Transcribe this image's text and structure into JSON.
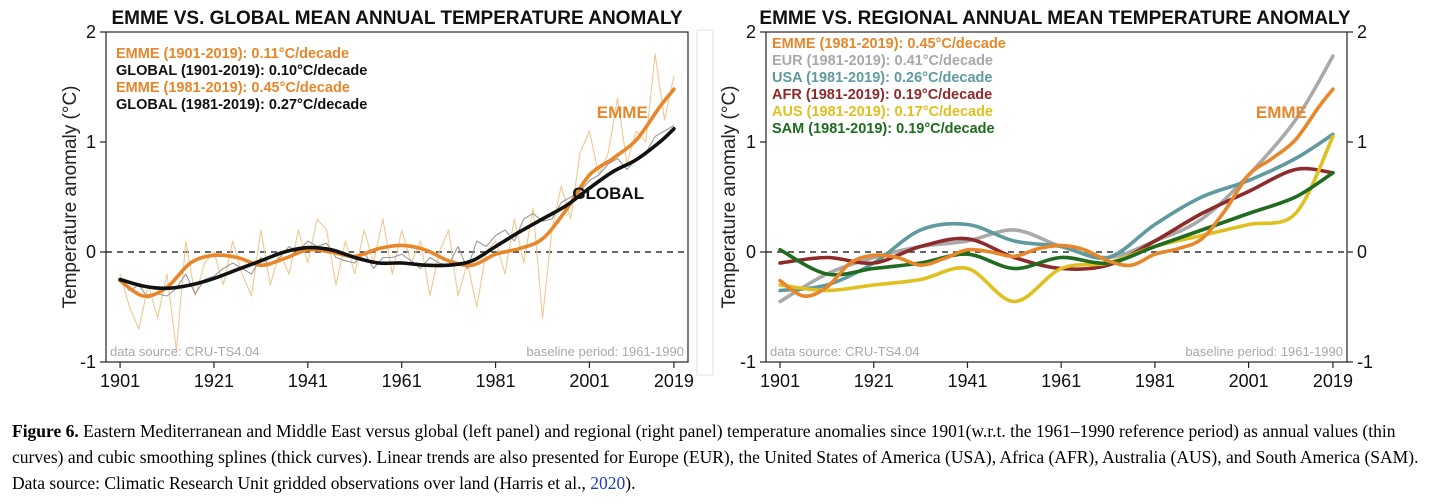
{
  "chart_data": [
    {
      "type": "line",
      "title": "EMME VS. GLOBAL MEAN ANNUAL TEMPERATURE ANOMALY",
      "ylabel": "Temperature anomaly (°C)",
      "xlabel": "",
      "xlim": [
        1898,
        2022
      ],
      "ylim": [
        -1.0,
        2.0
      ],
      "xticks": [
        "1901",
        "1921",
        "1941",
        "1961",
        "1981",
        "2001",
        "2019"
      ],
      "yticks": [
        "2",
        "1",
        "0",
        "-1"
      ],
      "right_axis": false,
      "reference_line": 0,
      "source_note": "data source: CRU-TS4.04",
      "baseline_note": "baseline period: 1961-1990",
      "annotations": [
        {
          "text": "EMME",
          "x": 2008,
          "y": 1.22,
          "color": "#e8862a"
        },
        {
          "text": "GLOBAL",
          "x": 2005,
          "y": 0.48,
          "color": "#111111"
        }
      ],
      "legend": [
        {
          "text": "EMME (1901-2019): 0.11°C/decade",
          "color": "#e8862a"
        },
        {
          "text": "GLOBAL (1901-2019): 0.10°C/decade",
          "color": "#111111"
        },
        {
          "text": "EMME (1981-2019): 0.45°C/decade",
          "color": "#e8862a"
        },
        {
          "text": "GLOBAL (1981-2019): 0.27°C/decade",
          "color": "#111111"
        }
      ],
      "series": [
        {
          "name": "EMME",
          "kind": "smooth",
          "color": "#e8862a",
          "x": [
            1901,
            1906,
            1911,
            1916,
            1921,
            1926,
            1931,
            1936,
            1941,
            1946,
            1951,
            1956,
            1961,
            1966,
            1971,
            1976,
            1981,
            1986,
            1991,
            1996,
            2001,
            2006,
            2011,
            2016,
            2019
          ],
          "y": [
            -0.26,
            -0.4,
            -0.32,
            -0.1,
            -0.03,
            -0.05,
            -0.12,
            -0.06,
            0.02,
            0.0,
            -0.04,
            0.03,
            0.06,
            0.02,
            -0.08,
            -0.12,
            -0.02,
            0.03,
            0.12,
            0.38,
            0.7,
            0.85,
            1.02,
            1.32,
            1.48
          ]
        },
        {
          "name": "GLOBAL",
          "kind": "smooth",
          "color": "#111111",
          "x": [
            1901,
            1906,
            1911,
            1916,
            1921,
            1926,
            1931,
            1936,
            1941,
            1946,
            1951,
            1956,
            1961,
            1966,
            1971,
            1976,
            1981,
            1986,
            1991,
            1996,
            2001,
            2006,
            2011,
            2016,
            2019
          ],
          "y": [
            -0.25,
            -0.31,
            -0.33,
            -0.3,
            -0.24,
            -0.16,
            -0.08,
            0.0,
            0.04,
            0.02,
            -0.05,
            -0.1,
            -0.1,
            -0.12,
            -0.12,
            -0.08,
            0.05,
            0.18,
            0.3,
            0.42,
            0.58,
            0.73,
            0.84,
            1.0,
            1.12
          ]
        },
        {
          "name": "EMME",
          "kind": "annual",
          "color": "#f0c890",
          "x": [
            1901,
            1903,
            1905,
            1907,
            1909,
            1911,
            1913,
            1915,
            1917,
            1919,
            1921,
            1923,
            1925,
            1927,
            1929,
            1931,
            1933,
            1935,
            1937,
            1939,
            1941,
            1943,
            1945,
            1947,
            1949,
            1951,
            1953,
            1955,
            1957,
            1959,
            1961,
            1963,
            1965,
            1967,
            1969,
            1971,
            1973,
            1975,
            1977,
            1979,
            1981,
            1983,
            1985,
            1987,
            1989,
            1991,
            1993,
            1995,
            1997,
            1999,
            2001,
            2003,
            2005,
            2007,
            2009,
            2011,
            2013,
            2015,
            2017,
            2019
          ],
          "y": [
            -0.2,
            -0.5,
            -0.7,
            -0.3,
            -0.6,
            -0.2,
            -0.9,
            0.1,
            -0.4,
            -0.1,
            0.0,
            -0.3,
            0.1,
            -0.2,
            -0.4,
            0.2,
            -0.3,
            0.0,
            -0.2,
            0.2,
            -0.1,
            0.3,
            0.2,
            -0.3,
            0.1,
            -0.2,
            0.2,
            -0.1,
            0.3,
            -0.2,
            0.2,
            -0.1,
            0.1,
            -0.4,
            0.0,
            0.2,
            -0.4,
            -0.1,
            -0.5,
            0.0,
            0.1,
            -0.2,
            0.3,
            -0.1,
            0.4,
            -0.6,
            0.2,
            0.6,
            0.3,
            0.9,
            1.1,
            0.7,
            0.9,
            1.4,
            0.8,
            1.1,
            1.0,
            1.8,
            1.2,
            1.6
          ]
        },
        {
          "name": "GLOBAL",
          "kind": "annual",
          "color": "#9a9a9a",
          "x": [
            1901,
            1903,
            1905,
            1907,
            1909,
            1911,
            1913,
            1915,
            1917,
            1919,
            1921,
            1923,
            1925,
            1927,
            1929,
            1931,
            1933,
            1935,
            1937,
            1939,
            1941,
            1943,
            1945,
            1947,
            1949,
            1951,
            1953,
            1955,
            1957,
            1959,
            1961,
            1963,
            1965,
            1967,
            1969,
            1971,
            1973,
            1975,
            1977,
            1979,
            1981,
            1983,
            1985,
            1987,
            1989,
            1991,
            1993,
            1995,
            1997,
            1999,
            2001,
            2003,
            2005,
            2007,
            2009,
            2011,
            2013,
            2015,
            2017,
            2019
          ],
          "y": [
            -0.25,
            -0.35,
            -0.3,
            -0.42,
            -0.38,
            -0.4,
            -0.33,
            -0.2,
            -0.38,
            -0.25,
            -0.22,
            -0.15,
            -0.1,
            -0.15,
            -0.2,
            -0.05,
            -0.12,
            -0.05,
            0.05,
            0.0,
            0.1,
            0.05,
            0.08,
            -0.05,
            -0.08,
            -0.1,
            0.0,
            -0.15,
            -0.05,
            -0.05,
            -0.02,
            -0.08,
            -0.15,
            -0.05,
            -0.1,
            -0.12,
            0.05,
            -0.15,
            0.1,
            0.05,
            0.15,
            0.2,
            0.1,
            0.3,
            0.35,
            0.28,
            0.3,
            0.45,
            0.5,
            0.55,
            0.65,
            0.7,
            0.8,
            0.85,
            0.75,
            0.85,
            0.9,
            1.05,
            1.1,
            1.15
          ]
        }
      ]
    },
    {
      "type": "line",
      "title": "EMME VS. REGIONAL ANNUAL MEAN TEMPERATURE ANOMALY",
      "ylabel": "Temperature anomaly (°C)",
      "xlabel": "",
      "xlim": [
        1898,
        2022
      ],
      "ylim": [
        -1.0,
        2.0
      ],
      "xticks": [
        "1901",
        "1921",
        "1941",
        "1961",
        "1981",
        "2001",
        "2019"
      ],
      "yticks": [
        "2",
        "1",
        "0",
        "-1"
      ],
      "right_axis": true,
      "reference_line": 0,
      "source_note": "data source: CRU-TS4.04",
      "baseline_note": "baseline period: 1961-1990",
      "annotations": [
        {
          "text": "EMME",
          "x": 2008,
          "y": 1.22,
          "color": "#e8862a"
        }
      ],
      "legend": [
        {
          "text": "EMME (1981-2019): 0.45°C/decade",
          "color": "#e8862a"
        },
        {
          "text": "EUR (1981-2019): 0.41°C/decade",
          "color": "#a9a9a9"
        },
        {
          "text": "USA (1981-2019): 0.26°C/decade",
          "color": "#5f9a9e"
        },
        {
          "text": "AFR (1981-2019): 0.19°C/decade",
          "color": "#8e2a2a"
        },
        {
          "text": "AUS (1981-2019): 0.17°C/decade",
          "color": "#e0c020"
        },
        {
          "text": "SAM (1981-2019): 0.19°C/decade",
          "color": "#1f6b1f"
        }
      ],
      "series": [
        {
          "name": "EUR",
          "kind": "smooth",
          "color": "#a9a9a9",
          "x": [
            1901,
            1911,
            1921,
            1931,
            1941,
            1951,
            1961,
            1971,
            1981,
            1991,
            2001,
            2011,
            2019
          ],
          "y": [
            -0.45,
            -0.2,
            -0.05,
            0.05,
            0.1,
            0.2,
            0.05,
            -0.05,
            0.1,
            0.3,
            0.7,
            1.2,
            1.78
          ]
        },
        {
          "name": "USA",
          "kind": "smooth",
          "color": "#5f9a9e",
          "x": [
            1901,
            1911,
            1921,
            1931,
            1941,
            1951,
            1961,
            1971,
            1981,
            1991,
            2001,
            2011,
            2019
          ],
          "y": [
            -0.35,
            -0.3,
            -0.1,
            0.2,
            0.25,
            0.1,
            0.05,
            -0.05,
            0.25,
            0.5,
            0.65,
            0.85,
            1.07
          ]
        },
        {
          "name": "AFR",
          "kind": "smooth",
          "color": "#8e2a2a",
          "x": [
            1901,
            1911,
            1921,
            1931,
            1941,
            1951,
            1961,
            1971,
            1981,
            1991,
            2001,
            2011,
            2019
          ],
          "y": [
            -0.1,
            -0.05,
            -0.1,
            0.05,
            0.12,
            -0.05,
            -0.15,
            -0.12,
            0.1,
            0.35,
            0.55,
            0.75,
            0.72
          ]
        },
        {
          "name": "AUS",
          "kind": "smooth",
          "color": "#e0c020",
          "x": [
            1901,
            1911,
            1921,
            1931,
            1941,
            1951,
            1961,
            1971,
            1981,
            1991,
            2001,
            2011,
            2019
          ],
          "y": [
            -0.3,
            -0.35,
            -0.3,
            -0.25,
            -0.15,
            -0.45,
            -0.15,
            -0.1,
            0.05,
            0.15,
            0.25,
            0.35,
            1.05
          ]
        },
        {
          "name": "SAM",
          "kind": "smooth",
          "color": "#1f6b1f",
          "x": [
            1901,
            1911,
            1921,
            1931,
            1941,
            1951,
            1961,
            1971,
            1981,
            1991,
            2001,
            2011,
            2019
          ],
          "y": [
            0.02,
            -0.2,
            -0.15,
            -0.1,
            -0.02,
            -0.15,
            -0.05,
            -0.1,
            0.05,
            0.2,
            0.35,
            0.5,
            0.72
          ]
        },
        {
          "name": "EMME",
          "kind": "smooth",
          "color": "#e8862a",
          "x": [
            1901,
            1906,
            1911,
            1916,
            1921,
            1926,
            1931,
            1936,
            1941,
            1946,
            1951,
            1956,
            1961,
            1966,
            1971,
            1976,
            1981,
            1986,
            1991,
            1996,
            2001,
            2006,
            2011,
            2016,
            2019
          ],
          "y": [
            -0.26,
            -0.4,
            -0.32,
            -0.1,
            -0.03,
            -0.05,
            -0.12,
            -0.06,
            0.02,
            0.0,
            -0.04,
            0.03,
            0.06,
            0.02,
            -0.08,
            -0.12,
            -0.02,
            0.03,
            0.12,
            0.38,
            0.7,
            0.85,
            1.02,
            1.32,
            1.48
          ]
        }
      ]
    }
  ],
  "caption": {
    "label": "Figure 6.",
    "text": "Eastern Mediterranean and Middle East versus global (left panel) and regional (right panel) temperature anomalies since 1901(w.r.t. the 1961–1990 reference period) as annual values (thin curves) and cubic smoothing splines (thick curves). Linear trends are also presented for Europe (EUR), the United States of America (USA), Africa (AFR), Australia (AUS), and South America (SAM). Data source: Climatic Research Unit gridded observations over land (Harris et al.,",
    "cite": "2020",
    "tail": ")."
  }
}
